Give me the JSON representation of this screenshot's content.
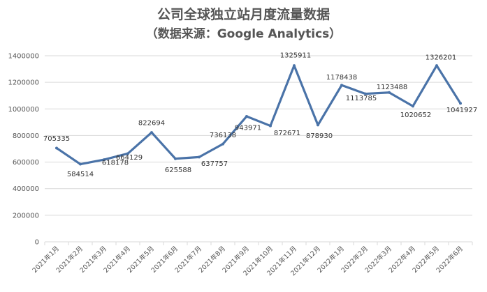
{
  "chart_data": {
    "type": "line",
    "title": "公司全球独立站月度流量数据",
    "subtitle": "（数据来源：Google Analytics）",
    "xlabel": "",
    "ylabel": "",
    "ylim": [
      0,
      1400000
    ],
    "yticks": [
      0,
      200000,
      400000,
      600000,
      800000,
      1000000,
      1200000,
      1400000
    ],
    "categories": [
      "2021年1月",
      "2021年2月",
      "2021年3月",
      "2021年4月",
      "2021年5月",
      "2021年6月",
      "2021年7月",
      "2021年8月",
      "2021年9月",
      "2021年10月",
      "2021年11月",
      "2021年12月",
      "2022年1月",
      "2022年2月",
      "2022年3月",
      "2022年4月",
      "2022年5月",
      "2022年6月"
    ],
    "series": [
      {
        "color": "#4a73a8",
        "values": [
          705335,
          584514,
          618178,
          664129,
          822694,
          625588,
          637757,
          736138,
          943971,
          872671,
          1325911,
          878930,
          1178438,
          1113785,
          1123488,
          1020652,
          1326201,
          1041927
        ],
        "labels": [
          "705335",
          "584514",
          "618178",
          "664129",
          "822694",
          "625588",
          "637757",
          "736138",
          "943971",
          "872671",
          "1325911",
          "878930",
          "1178438",
          "1113785",
          "1123488",
          "1020652",
          "1326201",
          "1041927"
        ]
      }
    ],
    "grid": true,
    "legend": "none"
  }
}
